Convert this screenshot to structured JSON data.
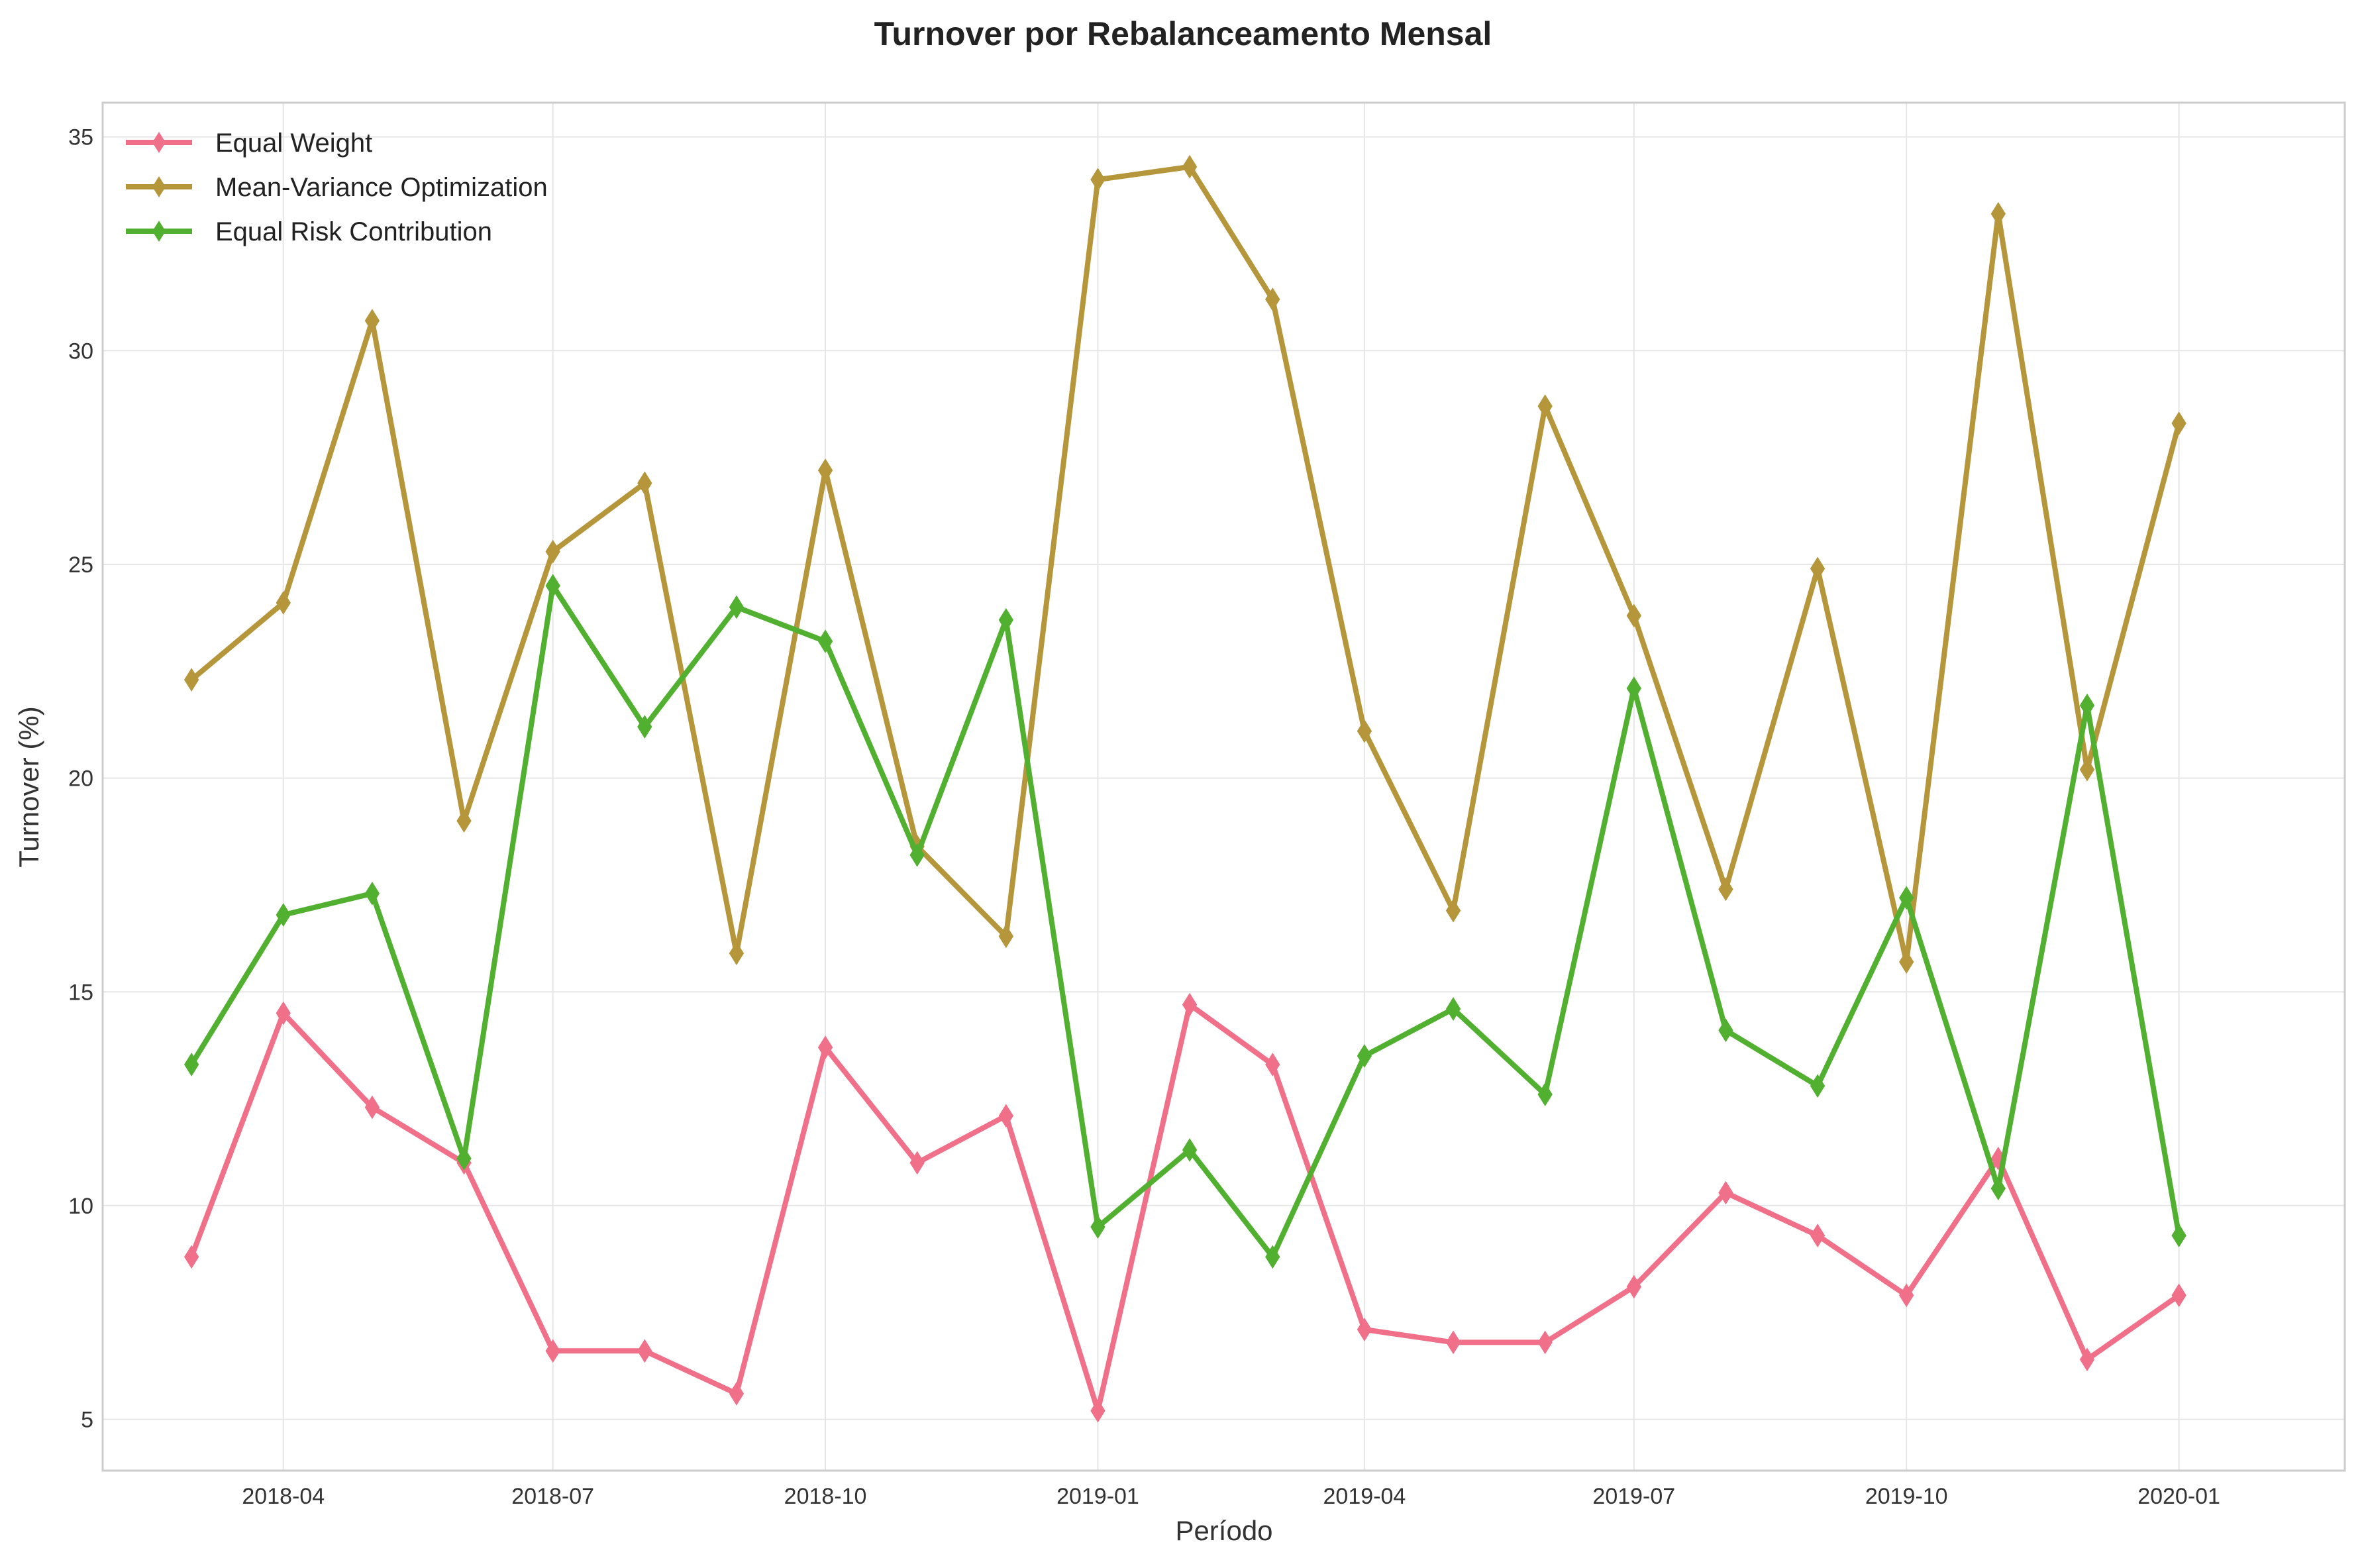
{
  "chart_data": {
    "type": "line",
    "title": "Turnover por Rebalanceamento Mensal",
    "xlabel": "Período",
    "ylabel": "Turnover (%)",
    "x": [
      "2018-03",
      "2018-04",
      "2018-05",
      "2018-06",
      "2018-07",
      "2018-08",
      "2018-09",
      "2018-10",
      "2018-11",
      "2018-12",
      "2019-01",
      "2019-02",
      "2019-03",
      "2019-04",
      "2019-05",
      "2019-06",
      "2019-07",
      "2019-08",
      "2019-09",
      "2019-10",
      "2019-11",
      "2019-12",
      "2020-01"
    ],
    "xlim": [
      "2018-01-30",
      "2020-02-26"
    ],
    "ylim": [
      3.8,
      35.8
    ],
    "x_ticks": [
      "2018-04",
      "2018-07",
      "2018-10",
      "2019-01",
      "2019-04",
      "2019-07",
      "2019-10",
      "2020-01"
    ],
    "y_ticks": [
      5,
      10,
      15,
      20,
      25,
      30,
      35
    ],
    "grid": true,
    "legend_position": "top-left",
    "marker": "thin-diamond",
    "series": [
      {
        "name": "Equal Weight",
        "color": "#f0708a",
        "values": [
          8.8,
          14.5,
          12.3,
          11.0,
          6.6,
          6.6,
          5.6,
          13.7,
          11.0,
          12.1,
          5.2,
          14.7,
          13.3,
          7.1,
          6.8,
          6.8,
          8.1,
          10.3,
          9.3,
          7.9,
          11.1,
          6.4,
          7.9
        ]
      },
      {
        "name": "Mean-Variance Optimization",
        "color": "#b5963a",
        "values": [
          22.3,
          24.1,
          30.7,
          19.0,
          25.3,
          26.9,
          15.9,
          27.2,
          18.4,
          16.3,
          34.0,
          34.3,
          31.2,
          21.1,
          16.9,
          28.7,
          23.8,
          17.4,
          24.9,
          15.7,
          33.2,
          20.2,
          28.3
        ]
      },
      {
        "name": "Equal Risk Contribution",
        "color": "#52b031",
        "values": [
          13.3,
          16.8,
          17.3,
          11.1,
          24.5,
          21.2,
          24.0,
          23.2,
          18.2,
          23.7,
          9.5,
          11.3,
          8.8,
          13.5,
          14.6,
          12.6,
          22.1,
          14.1,
          12.8,
          17.2,
          10.4,
          21.7,
          9.3
        ]
      }
    ]
  }
}
